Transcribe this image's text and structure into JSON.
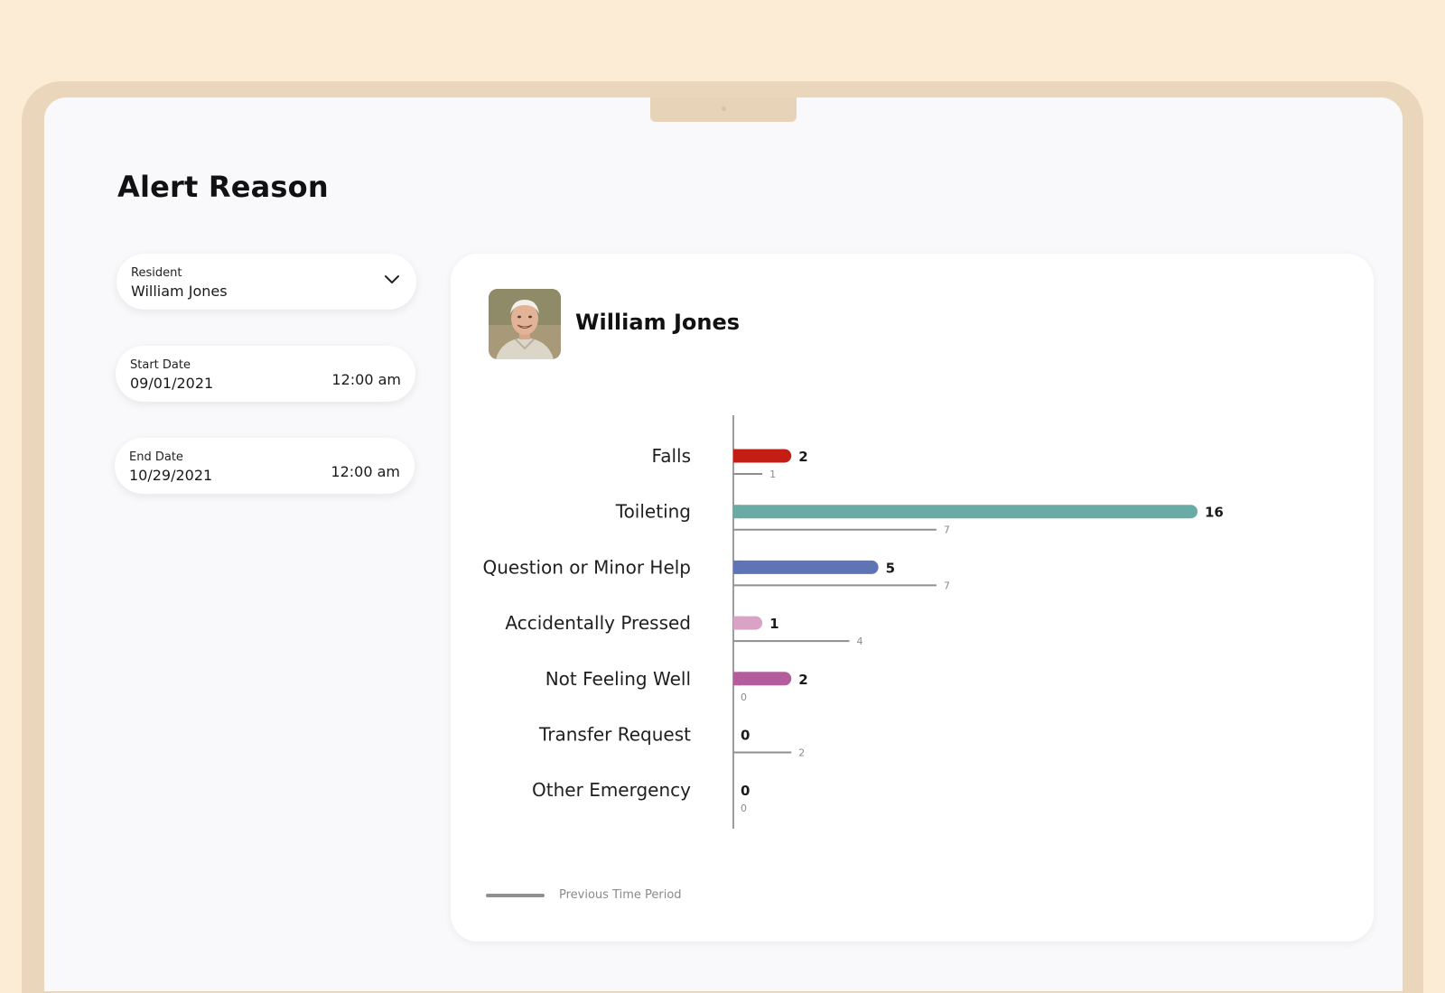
{
  "page": {
    "title": "Alert Reason"
  },
  "filters": {
    "resident": {
      "label": "Resident",
      "value": "William Jones"
    },
    "start_date": {
      "label": "Start Date",
      "date": "09/01/2021",
      "time": "12:00 am"
    },
    "end_date": {
      "label": "End Date",
      "date": "10/29/2021",
      "time": "12:00 am"
    }
  },
  "card": {
    "resident_name": "William Jones",
    "avatar_icon": "resident-photo"
  },
  "legend": {
    "previous_label": "Previous Time Period",
    "previous_color": "#8f8f8f"
  },
  "chart_data": {
    "type": "bar",
    "orientation": "horizontal",
    "categories": [
      "Falls",
      "Toileting",
      "Question or Minor Help",
      "Accidentally Pressed",
      "Not Feeling Well",
      "Transfer Request",
      "Other Emergency"
    ],
    "series": [
      {
        "values": [
          2,
          16,
          5,
          1,
          2,
          0,
          0
        ],
        "colors": [
          "#c41e14",
          "#6aaba6",
          "#5f74b5",
          "#d9a3c6",
          "#b45d9d",
          "#999999",
          "#999999"
        ]
      },
      {
        "name": "Previous Time Period",
        "values": [
          1,
          7,
          7,
          4,
          0,
          2,
          0
        ],
        "color": "#8f8f8f"
      }
    ],
    "xlim": [
      0,
      16
    ],
    "legend": "bottom-left",
    "grid": false
  }
}
